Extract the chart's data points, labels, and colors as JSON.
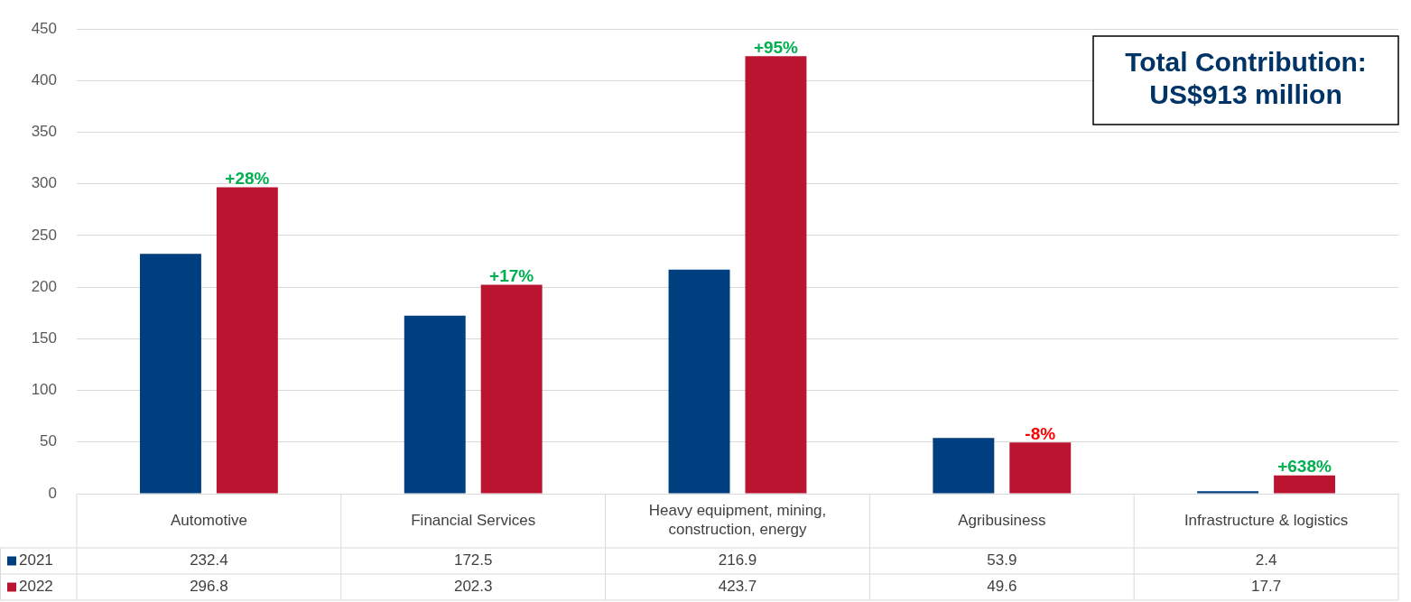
{
  "chart_data": {
    "type": "bar",
    "categories": [
      "Automotive",
      "Financial Services",
      "Heavy equipment, mining, construction, energy",
      "Agribusiness",
      "Infrastructure & logistics"
    ],
    "series": [
      {
        "name": "2021",
        "color": "#003f7f",
        "values": [
          232.4,
          172.5,
          216.9,
          53.9,
          2.4
        ]
      },
      {
        "name": "2022",
        "color": "#ba1431",
        "values": [
          296.8,
          202.3,
          423.7,
          49.6,
          17.7
        ]
      }
    ],
    "ylim": [
      0,
      450
    ],
    "yticks": [
      0,
      50,
      100,
      150,
      200,
      250,
      300,
      350,
      400,
      450
    ],
    "grid": "y",
    "legend": "bottom",
    "data_labels": true,
    "annotations": [
      "+28%",
      "+17%",
      "+95%",
      "-8%",
      "+638%",
      "Total Contribution: US$913 million"
    ]
  }
}
